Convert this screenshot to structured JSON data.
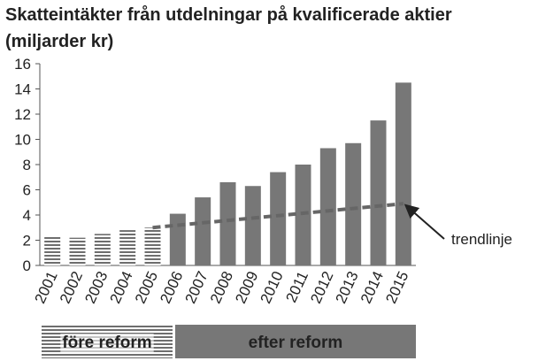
{
  "chart_data": {
    "type": "bar",
    "title": "Skatteintäkter från utdelningar på kvalificerade aktier (miljarder kr)",
    "categories": [
      "2001",
      "2002",
      "2003",
      "2004",
      "2005",
      "2006",
      "2007",
      "2008",
      "2009",
      "2010",
      "2011",
      "2012",
      "2013",
      "2014",
      "2015"
    ],
    "series": [
      {
        "name": "före reform",
        "color": "#6e6e6e",
        "pattern": "stripes",
        "values": [
          2.3,
          2.2,
          2.5,
          2.8,
          3.0,
          null,
          null,
          null,
          null,
          null,
          null,
          null,
          null,
          null,
          null
        ]
      },
      {
        "name": "efter reform",
        "color": "#777777",
        "pattern": "solid",
        "values": [
          null,
          null,
          null,
          null,
          null,
          4.1,
          5.4,
          6.6,
          6.3,
          7.4,
          8.0,
          9.3,
          9.7,
          11.5,
          14.5
        ]
      }
    ],
    "trend": {
      "label": "trendlinje",
      "color": "#666666",
      "x": [
        "2005",
        "2015"
      ],
      "values": [
        3.0,
        4.9
      ]
    },
    "ylim": [
      0,
      16
    ],
    "yticks": [
      0,
      2,
      4,
      6,
      8,
      10,
      12,
      14,
      16
    ]
  }
}
